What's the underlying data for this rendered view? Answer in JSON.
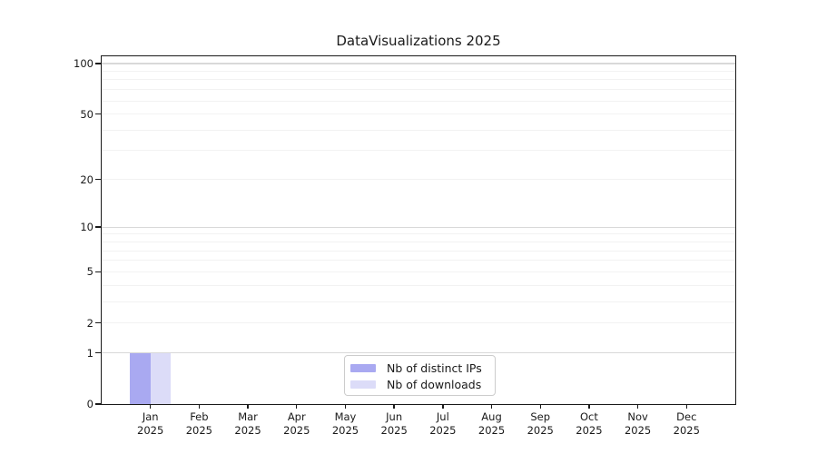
{
  "chart_data": {
    "type": "bar",
    "title": "DataVisualizations 2025",
    "categories": [
      "Jan 2025",
      "Feb 2025",
      "Mar 2025",
      "Apr 2025",
      "May 2025",
      "Jun 2025",
      "Jul 2025",
      "Aug 2025",
      "Sep 2025",
      "Oct 2025",
      "Nov 2025",
      "Dec 2025"
    ],
    "x_tick_months": [
      "Jan",
      "Feb",
      "Mar",
      "Apr",
      "May",
      "Jun",
      "Jul",
      "Aug",
      "Sep",
      "Oct",
      "Nov",
      "Dec"
    ],
    "x_tick_year": "2025",
    "series": [
      {
        "name": "Nb of distinct IPs",
        "color": "#a9a9f1",
        "values": [
          1,
          0,
          0,
          0,
          0,
          0,
          0,
          0,
          0,
          0,
          0,
          0
        ]
      },
      {
        "name": "Nb of downloads",
        "color": "#dcdcf8",
        "values": [
          1,
          0,
          0,
          0,
          0,
          0,
          0,
          0,
          0,
          0,
          0,
          0
        ]
      }
    ],
    "yscale": "log1p",
    "ylim": [
      0,
      110
    ],
    "y_tick_labels": [
      100,
      50,
      20,
      10,
      5,
      2,
      1,
      0
    ],
    "y_major_gridlines": [
      1,
      10,
      100
    ],
    "y_minor_gridlines": [
      2,
      3,
      4,
      5,
      6,
      7,
      8,
      9,
      20,
      30,
      40,
      50,
      60,
      70,
      80,
      90
    ],
    "grid": true,
    "legend_position": "lower center",
    "colors": {
      "axis": "#1a1a1a",
      "major_grid": "#d9d9d9",
      "minor_grid": "#f2f2f2",
      "background": "#ffffff"
    }
  }
}
